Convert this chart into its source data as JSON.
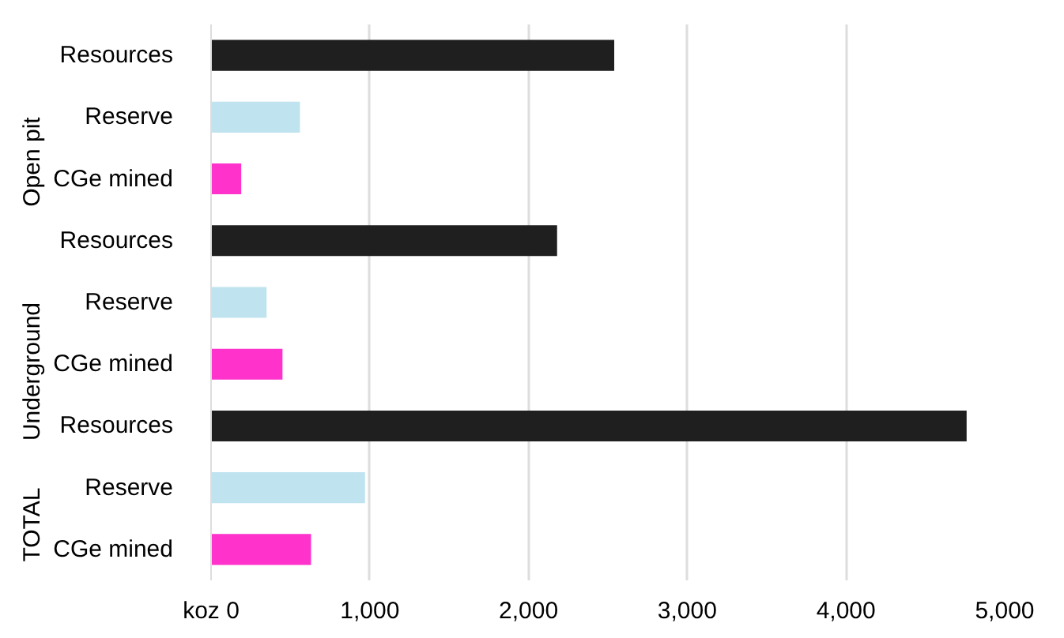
{
  "chart_data": {
    "type": "bar",
    "orientation": "horizontal",
    "categories": [
      "Resources",
      "Reserve",
      "CGe mined",
      "Resources",
      "Reserve",
      "CGe mined",
      "Resources",
      "Reserve",
      "CGe mined"
    ],
    "values": [
      2540,
      560,
      190,
      2180,
      350,
      450,
      4760,
      970,
      630
    ],
    "colors": [
      "#1f1f1f",
      "#c0e4ef",
      "#ff33cc",
      "#1f1f1f",
      "#c0e4ef",
      "#ff33cc",
      "#1f1f1f",
      "#c0e4ef",
      "#ff33cc"
    ],
    "annotations": [
      "Open pit",
      "Underground",
      "TOTAL"
    ],
    "xlim": [
      0,
      5000
    ],
    "xticks": [
      {
        "value": 0,
        "label": "koz 0"
      },
      {
        "value": 1000,
        "label": "1,000"
      },
      {
        "value": 2000,
        "label": "2,000"
      },
      {
        "value": 3000,
        "label": "3,000"
      },
      {
        "value": 4000,
        "label": "4,000"
      },
      {
        "value": 5000,
        "label": "5,000"
      }
    ],
    "grid": "x"
  }
}
